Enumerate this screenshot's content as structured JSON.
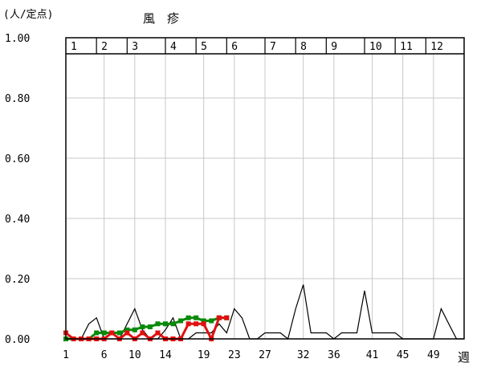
{
  "chart_data": {
    "type": "line",
    "title": "風　疹",
    "ylabel": "(人/定点)",
    "xlabel": "週",
    "ylim": [
      0,
      1.0
    ],
    "xlim": [
      1,
      53
    ],
    "y_ticks": [
      "0.00",
      "0.20",
      "0.40",
      "0.60",
      "0.80",
      "1.00"
    ],
    "x_ticks": [
      1,
      6,
      10,
      14,
      19,
      23,
      27,
      32,
      36,
      41,
      45,
      49
    ],
    "month_labels": [
      "1",
      "2",
      "3",
      "4",
      "5",
      "6",
      "7",
      "8",
      "9",
      "10",
      "11",
      "12"
    ],
    "month_start_weeks": [
      1,
      5,
      9,
      14,
      18,
      22,
      27,
      31,
      35,
      40,
      44,
      48,
      53
    ],
    "grid": true,
    "series": [
      {
        "color": "#000000",
        "style": "line",
        "x": [
          1,
          2,
          3,
          4,
          5,
          6,
          7,
          8,
          9,
          10,
          11,
          12,
          13,
          14,
          15,
          16,
          17,
          18,
          19,
          20,
          21,
          22,
          23,
          24,
          25,
          26,
          27,
          28,
          29,
          30,
          31,
          32,
          33,
          34,
          35,
          36,
          37,
          38,
          39,
          40,
          41,
          42,
          43,
          44,
          45,
          46,
          47,
          48,
          49,
          50,
          51,
          52,
          53
        ],
        "values": [
          0.0,
          0.0,
          0.0,
          0.05,
          0.07,
          0.0,
          0.0,
          0.0,
          0.05,
          0.1,
          0.03,
          0.0,
          0.0,
          0.03,
          0.07,
          0.0,
          0.0,
          0.02,
          0.02,
          0.02,
          0.05,
          0.02,
          0.1,
          0.07,
          0.0,
          0.0,
          0.02,
          0.02,
          0.02,
          0.0,
          0.1,
          0.18,
          0.02,
          0.02,
          0.02,
          0.0,
          0.02,
          0.02,
          0.02,
          0.16,
          0.02,
          0.02,
          0.02,
          0.02,
          0.0,
          0.0,
          0.0,
          0.0,
          0.0,
          0.1,
          0.05,
          0.0,
          0.0
        ]
      },
      {
        "color": "#0a8a0a",
        "style": "marker",
        "x": [
          1,
          2,
          3,
          4,
          5,
          6,
          7,
          8,
          9,
          10,
          11,
          12,
          13,
          14,
          15,
          16,
          17,
          18,
          19,
          20,
          21,
          22
        ],
        "values": [
          0.0,
          0.0,
          0.0,
          0.0,
          0.02,
          0.02,
          0.02,
          0.02,
          0.03,
          0.03,
          0.04,
          0.04,
          0.05,
          0.05,
          0.05,
          0.06,
          0.07,
          0.07,
          0.06,
          0.06,
          0.07,
          0.07
        ]
      },
      {
        "color": "#e01010",
        "style": "marker",
        "x": [
          1,
          2,
          3,
          4,
          5,
          6,
          7,
          8,
          9,
          10,
          11,
          12,
          13,
          14,
          15,
          16,
          17,
          18,
          19,
          20,
          21,
          22
        ],
        "values": [
          0.02,
          0.0,
          0.0,
          0.0,
          0.0,
          0.0,
          0.02,
          0.0,
          0.02,
          0.0,
          0.02,
          0.0,
          0.02,
          0.0,
          0.0,
          0.0,
          0.05,
          0.05,
          0.05,
          0.0,
          0.07,
          0.07
        ]
      }
    ]
  }
}
